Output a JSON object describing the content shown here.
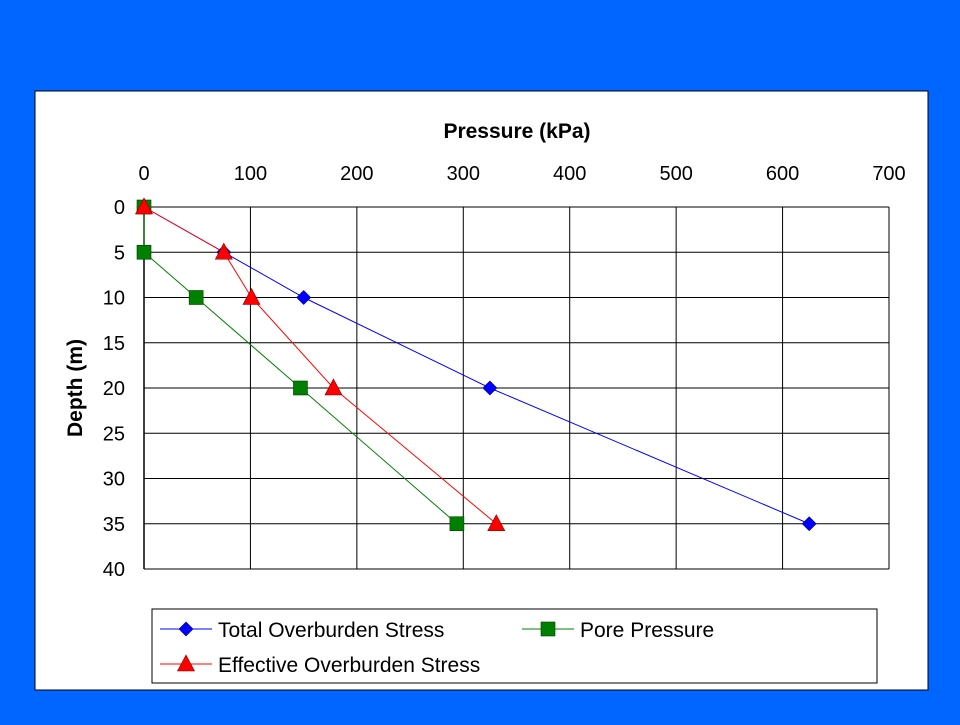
{
  "colors": {
    "slide_background": "#0066ff",
    "plot_background": "#ffffff",
    "grid": "#000000",
    "series_total": "#0000ff",
    "series_pore": "#008000",
    "series_effective": "#ff0000"
  },
  "chart_data": {
    "type": "line",
    "orientation": "depth-profile (x axis on top, y axis reversed)",
    "xlabel": "Pressure (kPa)",
    "ylabel": "Depth (m)",
    "xlim": [
      0,
      700
    ],
    "ylim": [
      0,
      40
    ],
    "x_ticks": [
      0,
      100,
      200,
      300,
      400,
      500,
      600,
      700
    ],
    "y_ticks": [
      0,
      5,
      10,
      15,
      20,
      25,
      30,
      35,
      40
    ],
    "grid": "vertical and horizontal",
    "legend_position": "bottom",
    "series": [
      {
        "name": "Total Overburden Stress",
        "marker": "diamond",
        "color": "#0000ff",
        "points": [
          {
            "x": 0,
            "y": 0
          },
          {
            "x": 75,
            "y": 5
          },
          {
            "x": 150,
            "y": 10
          },
          {
            "x": 325,
            "y": 20
          },
          {
            "x": 625,
            "y": 35
          }
        ]
      },
      {
        "name": "Pore Pressure",
        "marker": "square",
        "color": "#008000",
        "points": [
          {
            "x": 0,
            "y": 0
          },
          {
            "x": 0,
            "y": 5
          },
          {
            "x": 49,
            "y": 10
          },
          {
            "x": 147,
            "y": 20
          },
          {
            "x": 294,
            "y": 35
          }
        ]
      },
      {
        "name": "Effective Overburden Stress",
        "marker": "triangle",
        "color": "#ff0000",
        "points": [
          {
            "x": 0,
            "y": 0
          },
          {
            "x": 75,
            "y": 5
          },
          {
            "x": 101,
            "y": 10
          },
          {
            "x": 178,
            "y": 20
          },
          {
            "x": 331,
            "y": 35
          }
        ]
      }
    ]
  }
}
